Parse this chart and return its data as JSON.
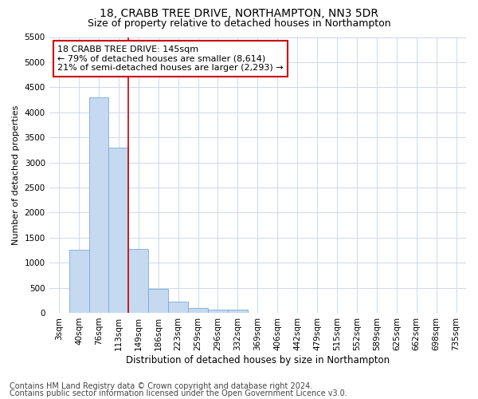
{
  "title1": "18, CRABB TREE DRIVE, NORTHAMPTON, NN3 5DR",
  "title2": "Size of property relative to detached houses in Northampton",
  "xlabel": "Distribution of detached houses by size in Northampton",
  "ylabel": "Number of detached properties",
  "categories": [
    "3sqm",
    "40sqm",
    "76sqm",
    "113sqm",
    "149sqm",
    "186sqm",
    "223sqm",
    "259sqm",
    "296sqm",
    "332sqm",
    "369sqm",
    "406sqm",
    "442sqm",
    "479sqm",
    "515sqm",
    "552sqm",
    "589sqm",
    "625sqm",
    "662sqm",
    "698sqm",
    "735sqm"
  ],
  "values": [
    0,
    1250,
    4300,
    3300,
    1280,
    480,
    230,
    100,
    70,
    70,
    0,
    0,
    0,
    0,
    0,
    0,
    0,
    0,
    0,
    0,
    0
  ],
  "bar_color": "#c5d9f0",
  "bar_edge_color": "#7aabda",
  "vline_color": "#cc0000",
  "vline_x_index": 4,
  "annotation_line1": "18 CRABB TREE DRIVE: 145sqm",
  "annotation_line2": "← 79% of detached houses are smaller (8,614)",
  "annotation_line3": "21% of semi-detached houses are larger (2,293) →",
  "annotation_box_facecolor": "#ffffff",
  "annotation_box_edgecolor": "#cc0000",
  "ylim": [
    0,
    5500
  ],
  "yticks": [
    0,
    500,
    1000,
    1500,
    2000,
    2500,
    3000,
    3500,
    4000,
    4500,
    5000,
    5500
  ],
  "footer1": "Contains HM Land Registry data © Crown copyright and database right 2024.",
  "footer2": "Contains public sector information licensed under the Open Government Licence v3.0.",
  "bg_color": "#ffffff",
  "grid_color": "#cdd8ec",
  "title1_fontsize": 10,
  "title2_fontsize": 9,
  "xlabel_fontsize": 8.5,
  "ylabel_fontsize": 8,
  "tick_fontsize": 7.5,
  "footer_fontsize": 7,
  "annotation_fontsize": 8
}
